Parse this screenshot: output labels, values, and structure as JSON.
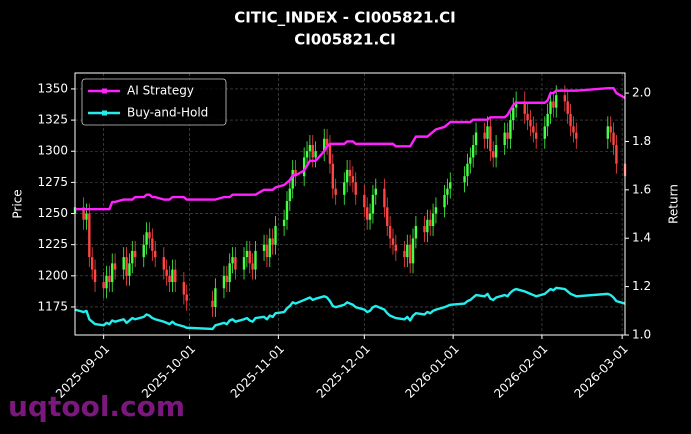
{
  "chart_data": {
    "type": "candlestick",
    "title": "CITIC_INDEX - CI005821.CI",
    "subtitle": "CI005821.CI",
    "ylabel": "Price",
    "y2label": "Return",
    "watermark": "uqtool.com",
    "grid": true,
    "legend": "upper left",
    "up_color": "#44ff44",
    "down_color": "#ff4444",
    "xlim": [
      "2025-08-22",
      "2026-03-02"
    ],
    "xticks": [
      "2025-09-01",
      "2025-10-01",
      "2025-11-01",
      "2025-12-01",
      "2026-01-01",
      "2026-02-01",
      "2026-03-01"
    ],
    "ylim": [
      1152.5,
      1362.8
    ],
    "yticks": [
      1175,
      1200,
      1225,
      1250,
      1275,
      1300,
      1325,
      1350
    ],
    "y2lim": [
      1.0,
      2.083
    ],
    "y2ticks": [
      {
        "value": 1,
        "label": "1.0"
      },
      1.2,
      1.4,
      1.6,
      1.8,
      {
        "value": 2,
        "label": "2.0"
      }
    ],
    "x": [
      "2025-08-22",
      "2025-08-25",
      "2025-08-26",
      "2025-08-27",
      "2025-08-28",
      "2025-08-29",
      "2025-09-01",
      "2025-09-02",
      "2025-09-03",
      "2025-09-04",
      "2025-09-05",
      "2025-09-08",
      "2025-09-09",
      "2025-09-10",
      "2025-09-11",
      "2025-09-12",
      "2025-09-15",
      "2025-09-16",
      "2025-09-17",
      "2025-09-18",
      "2025-09-19",
      "2025-09-22",
      "2025-09-23",
      "2025-09-24",
      "2025-09-25",
      "2025-09-26",
      "2025-09-29",
      "2025-09-30",
      "2025-10-09",
      "2025-10-10",
      "2025-10-13",
      "2025-10-14",
      "2025-10-15",
      "2025-10-16",
      "2025-10-17",
      "2025-10-20",
      "2025-10-21",
      "2025-10-22",
      "2025-10-23",
      "2025-10-24",
      "2025-10-27",
      "2025-10-28",
      "2025-10-29",
      "2025-10-30",
      "2025-10-31",
      "2025-11-03",
      "2025-11-04",
      "2025-11-05",
      "2025-11-06",
      "2025-11-07",
      "2025-11-10",
      "2025-11-11",
      "2025-11-12",
      "2025-11-13",
      "2025-11-14",
      "2025-11-17",
      "2025-11-18",
      "2025-11-19",
      "2025-11-20",
      "2025-11-21",
      "2025-11-24",
      "2025-11-25",
      "2025-11-26",
      "2025-11-27",
      "2025-11-28",
      "2025-12-01",
      "2025-12-02",
      "2025-12-03",
      "2025-12-04",
      "2025-12-05",
      "2025-12-08",
      "2025-12-09",
      "2025-12-10",
      "2025-12-11",
      "2025-12-12",
      "2025-12-15",
      "2025-12-16",
      "2025-12-17",
      "2025-12-18",
      "2025-12-19",
      "2025-12-22",
      "2025-12-23",
      "2025-12-24",
      "2025-12-25",
      "2025-12-26",
      "2025-12-29",
      "2025-12-30",
      "2025-12-31",
      "2026-01-05",
      "2026-01-06",
      "2026-01-07",
      "2026-01-08",
      "2026-01-09",
      "2026-01-12",
      "2026-01-13",
      "2026-01-14",
      "2026-01-15",
      "2026-01-16",
      "2026-01-19",
      "2026-01-20",
      "2026-01-21",
      "2026-01-22",
      "2026-01-23",
      "2026-01-26",
      "2026-01-27",
      "2026-01-28",
      "2026-01-29",
      "2026-01-30",
      "2026-02-02",
      "2026-02-03",
      "2026-02-04",
      "2026-02-05",
      "2026-02-06",
      "2026-02-09",
      "2026-02-10",
      "2026-02-11",
      "2026-02-12",
      "2026-02-13",
      "2026-02-24",
      "2026-02-25",
      "2026-02-26",
      "2026-02-27",
      "2026-03-02"
    ],
    "open": [
      1250,
      1255,
      1245,
      1250,
      1215,
      1205,
      1195,
      1190,
      1200,
      1195,
      1210,
      1205,
      1215,
      1200,
      1210,
      1220,
      1215,
      1225,
      1235,
      1230,
      1220,
      1215,
      1205,
      1200,
      1195,
      1205,
      1195,
      1185,
      1180,
      1175,
      1190,
      1200,
      1195,
      1210,
      1215,
      1205,
      1215,
      1220,
      1210,
      1205,
      1220,
      1225,
      1215,
      1230,
      1225,
      1240,
      1245,
      1260,
      1270,
      1285,
      1280,
      1295,
      1300,
      1305,
      1295,
      1300,
      1310,
      1305,
      1290,
      1270,
      1265,
      1275,
      1285,
      1280,
      1275,
      1265,
      1255,
      1245,
      1250,
      1265,
      1270,
      1255,
      1240,
      1230,
      1225,
      1220,
      1215,
      1225,
      1210,
      1230,
      1240,
      1235,
      1245,
      1240,
      1250,
      1255,
      1265,
      1270,
      1275,
      1280,
      1290,
      1295,
      1305,
      1315,
      1310,
      1320,
      1300,
      1295,
      1305,
      1315,
      1310,
      1325,
      1335,
      1340,
      1330,
      1325,
      1320,
      1315,
      1310,
      1320,
      1330,
      1340,
      1335,
      1345,
      1340,
      1330,
      1320,
      1315,
      1310,
      1320,
      1315,
      1305,
      1290
    ],
    "high": [
      1263,
      1263,
      1258,
      1258,
      1223,
      1213,
      1203,
      1208,
      1208,
      1218,
      1218,
      1223,
      1223,
      1218,
      1228,
      1228,
      1233,
      1243,
      1243,
      1238,
      1228,
      1223,
      1213,
      1208,
      1213,
      1213,
      1203,
      1193,
      1188,
      1198,
      1208,
      1208,
      1218,
      1223,
      1223,
      1223,
      1228,
      1228,
      1218,
      1228,
      1233,
      1233,
      1238,
      1238,
      1248,
      1253,
      1268,
      1278,
      1293,
      1293,
      1303,
      1308,
      1313,
      1313,
      1308,
      1318,
      1318,
      1313,
      1298,
      1278,
      1283,
      1293,
      1293,
      1288,
      1283,
      1273,
      1263,
      1258,
      1273,
      1278,
      1278,
      1263,
      1248,
      1238,
      1233,
      1228,
      1233,
      1233,
      1238,
      1248,
      1248,
      1253,
      1253,
      1258,
      1263,
      1273,
      1278,
      1283,
      1288,
      1298,
      1303,
      1313,
      1323,
      1323,
      1328,
      1328,
      1308,
      1313,
      1323,
      1323,
      1333,
      1343,
      1348,
      1348,
      1338,
      1333,
      1328,
      1323,
      1328,
      1338,
      1348,
      1348,
      1353,
      1353,
      1348,
      1338,
      1328,
      1323,
      1328,
      1328,
      1323,
      1313,
      1298
    ],
    "low": [
      1242,
      1237,
      1237,
      1207,
      1197,
      1187,
      1182,
      1182,
      1187,
      1187,
      1197,
      1197,
      1192,
      1192,
      1202,
      1207,
      1207,
      1217,
      1222,
      1212,
      1207,
      1197,
      1192,
      1187,
      1187,
      1187,
      1177,
      1172,
      1167,
      1167,
      1182,
      1187,
      1187,
      1202,
      1197,
      1197,
      1207,
      1202,
      1197,
      1197,
      1212,
      1207,
      1207,
      1217,
      1217,
      1232,
      1237,
      1252,
      1262,
      1272,
      1272,
      1287,
      1292,
      1287,
      1287,
      1292,
      1297,
      1282,
      1262,
      1257,
      1257,
      1267,
      1272,
      1267,
      1257,
      1247,
      1237,
      1237,
      1242,
      1257,
      1247,
      1232,
      1222,
      1217,
      1212,
      1207,
      1207,
      1202,
      1202,
      1222,
      1227,
      1227,
      1232,
      1232,
      1242,
      1247,
      1257,
      1262,
      1267,
      1272,
      1282,
      1287,
      1297,
      1302,
      1302,
      1292,
      1287,
      1287,
      1297,
      1302,
      1302,
      1317,
      1327,
      1322,
      1317,
      1312,
      1307,
      1302,
      1302,
      1312,
      1322,
      1327,
      1327,
      1332,
      1322,
      1312,
      1307,
      1302,
      1302,
      1307,
      1297,
      1282,
      1272
    ],
    "close": [
      1255,
      1245,
      1250,
      1215,
      1205,
      1195,
      1190,
      1200,
      1195,
      1210,
      1205,
      1215,
      1200,
      1210,
      1220,
      1215,
      1225,
      1235,
      1230,
      1220,
      1215,
      1205,
      1200,
      1195,
      1205,
      1195,
      1185,
      1180,
      1175,
      1190,
      1200,
      1195,
      1210,
      1215,
      1205,
      1215,
      1220,
      1210,
      1205,
      1220,
      1225,
      1215,
      1230,
      1225,
      1240,
      1245,
      1260,
      1270,
      1285,
      1280,
      1295,
      1300,
      1305,
      1295,
      1300,
      1310,
      1305,
      1290,
      1270,
      1265,
      1275,
      1285,
      1280,
      1275,
      1265,
      1255,
      1245,
      1250,
      1265,
      1270,
      1255,
      1240,
      1230,
      1225,
      1220,
      1215,
      1225,
      1210,
      1230,
      1240,
      1235,
      1245,
      1240,
      1250,
      1255,
      1265,
      1270,
      1275,
      1280,
      1290,
      1295,
      1305,
      1315,
      1310,
      1320,
      1300,
      1295,
      1305,
      1315,
      1310,
      1325,
      1335,
      1340,
      1330,
      1325,
      1320,
      1315,
      1310,
      1320,
      1330,
      1340,
      1335,
      1345,
      1340,
      1330,
      1320,
      1315,
      1310,
      1320,
      1315,
      1305,
      1290,
      1280
    ],
    "series": [
      {
        "name": "AI Strategy",
        "color": "#ff22ff",
        "axis": "y2",
        "values": [
          1.52,
          1.52,
          1.52,
          1.52,
          1.52,
          1.52,
          1.52,
          1.52,
          1.52,
          1.55,
          1.55,
          1.56,
          1.56,
          1.56,
          1.56,
          1.57,
          1.57,
          1.58,
          1.58,
          1.57,
          1.57,
          1.56,
          1.56,
          1.56,
          1.57,
          1.57,
          1.57,
          1.56,
          1.56,
          1.56,
          1.57,
          1.57,
          1.57,
          1.58,
          1.58,
          1.58,
          1.58,
          1.58,
          1.58,
          1.58,
          1.6,
          1.6,
          1.6,
          1.6,
          1.61,
          1.62,
          1.63,
          1.64,
          1.66,
          1.66,
          1.68,
          1.7,
          1.72,
          1.72,
          1.72,
          1.76,
          1.78,
          1.79,
          1.79,
          1.79,
          1.79,
          1.8,
          1.8,
          1.8,
          1.79,
          1.79,
          1.79,
          1.79,
          1.79,
          1.79,
          1.79,
          1.79,
          1.79,
          1.79,
          1.78,
          1.78,
          1.78,
          1.78,
          1.8,
          1.82,
          1.82,
          1.82,
          1.83,
          1.84,
          1.85,
          1.86,
          1.87,
          1.88,
          1.88,
          1.88,
          1.88,
          1.89,
          1.89,
          1.89,
          1.89,
          1.9,
          1.9,
          1.9,
          1.9,
          1.91,
          1.93,
          1.95,
          1.96,
          1.96,
          1.96,
          1.96,
          1.96,
          1.96,
          1.96,
          1.97,
          2.0,
          2.0,
          2.01,
          2.01,
          2.01,
          2.01,
          2.01,
          2.01,
          2.02,
          2.02,
          2.02,
          2.0,
          1.98
        ]
      },
      {
        "name": "Buy-and-Hold",
        "color": "#22eeee",
        "axis": "y2",
        "values": [
          1.105,
          1.095,
          1.1,
          1.065,
          1.055,
          1.045,
          1.04,
          1.05,
          1.045,
          1.06,
          1.055,
          1.065,
          1.05,
          1.06,
          1.07,
          1.065,
          1.075,
          1.085,
          1.08,
          1.07,
          1.065,
          1.055,
          1.05,
          1.045,
          1.055,
          1.045,
          1.035,
          1.03,
          1.025,
          1.04,
          1.05,
          1.045,
          1.06,
          1.065,
          1.055,
          1.065,
          1.07,
          1.06,
          1.055,
          1.07,
          1.075,
          1.065,
          1.08,
          1.075,
          1.09,
          1.095,
          1.11,
          1.12,
          1.135,
          1.13,
          1.145,
          1.15,
          1.155,
          1.145,
          1.15,
          1.16,
          1.155,
          1.14,
          1.12,
          1.115,
          1.125,
          1.135,
          1.13,
          1.125,
          1.115,
          1.105,
          1.095,
          1.1,
          1.115,
          1.12,
          1.105,
          1.09,
          1.08,
          1.075,
          1.07,
          1.065,
          1.075,
          1.06,
          1.08,
          1.09,
          1.085,
          1.095,
          1.09,
          1.1,
          1.105,
          1.115,
          1.12,
          1.125,
          1.13,
          1.14,
          1.145,
          1.155,
          1.165,
          1.16,
          1.17,
          1.15,
          1.145,
          1.155,
          1.165,
          1.16,
          1.175,
          1.185,
          1.19,
          1.18,
          1.175,
          1.17,
          1.165,
          1.16,
          1.17,
          1.18,
          1.19,
          1.185,
          1.195,
          1.19,
          1.18,
          1.17,
          1.165,
          1.16,
          1.17,
          1.165,
          1.155,
          1.14,
          1.13
        ]
      }
    ]
  }
}
